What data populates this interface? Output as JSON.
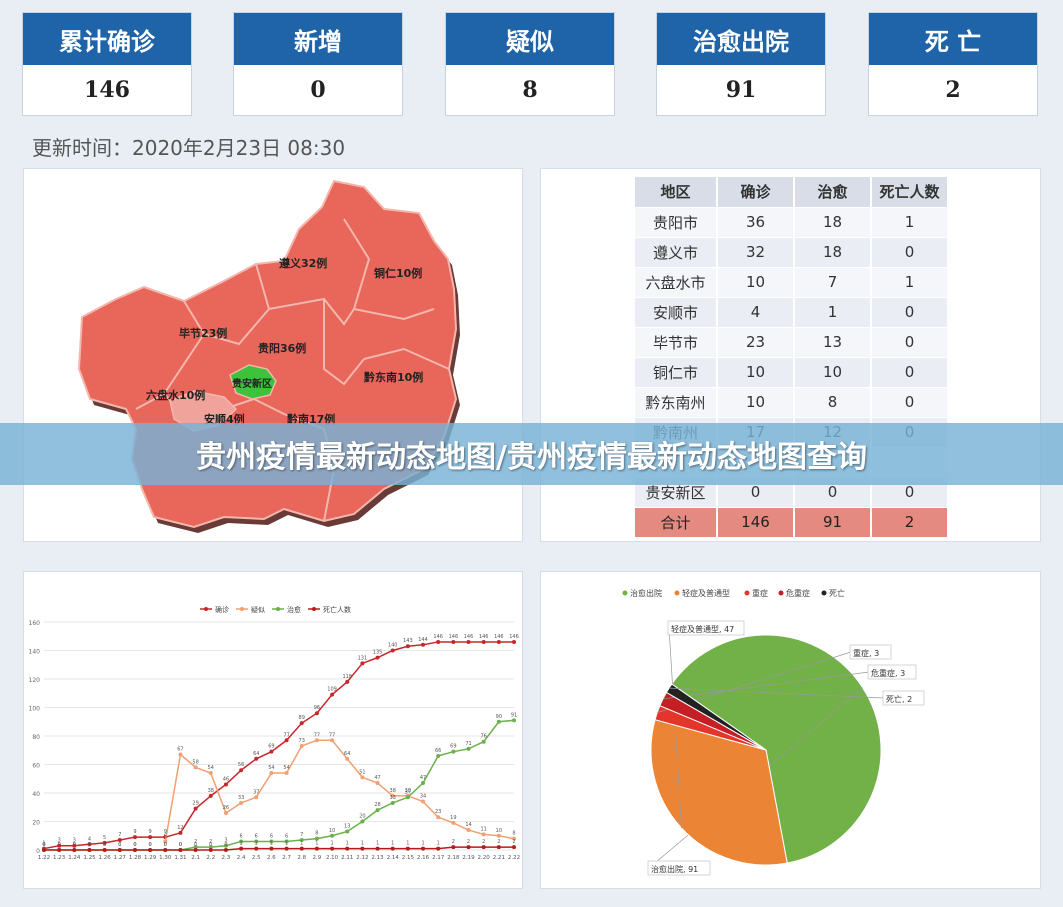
{
  "stats": [
    {
      "label": "累计确诊",
      "value": "146"
    },
    {
      "label": "新增",
      "value": "0"
    },
    {
      "label": "疑似",
      "value": "8"
    },
    {
      "label": "治愈出院",
      "value": "91"
    },
    {
      "label": "死 亡",
      "value": "2"
    }
  ],
  "update_time": "更新时间：2020年2月23日  08:30",
  "banner_title": "贵州疫情最新动态地图/贵州疫情最新动态地图查询",
  "map": {
    "labels": [
      "遵义32例",
      "铜仁10例",
      "毕节23例",
      "贵阳36例",
      "贵安新区",
      "黔东南10例",
      "六盘水10例",
      "安顺4例",
      "黔南17例"
    ],
    "colors": {
      "region": "#e8665a",
      "highlight": "#3ec23b",
      "border": "#f3b7ae"
    }
  },
  "table": {
    "headers": [
      "地区",
      "确诊",
      "治愈",
      "死亡人数"
    ],
    "rows": [
      [
        "贵阳市",
        "36",
        "18",
        "1"
      ],
      [
        "遵义市",
        "32",
        "18",
        "0"
      ],
      [
        "六盘水市",
        "10",
        "7",
        "1"
      ],
      [
        "安顺市",
        "4",
        "1",
        "0"
      ],
      [
        "毕节市",
        "23",
        "13",
        "0"
      ],
      [
        "铜仁市",
        "10",
        "10",
        "0"
      ],
      [
        "黔东南州",
        "10",
        "8",
        "0"
      ],
      [
        "黔南州",
        "17",
        "12",
        "0"
      ],
      [
        "",
        "",
        "",
        ""
      ],
      [
        "贵安新区",
        "0",
        "0",
        "0"
      ]
    ],
    "total": [
      "合计",
      "146",
      "91",
      "2"
    ]
  },
  "chart_data": [
    {
      "type": "line",
      "title": "",
      "x": [
        "1.22",
        "1.23",
        "1.24",
        "1.25",
        "1.26",
        "1.27",
        "1.28",
        "1.29",
        "1.30",
        "1.31",
        "2.1",
        "2.2",
        "2.3",
        "2.4",
        "2.5",
        "2.6",
        "2.7",
        "2.8",
        "2.9",
        "2.10",
        "2.11",
        "2.12",
        "2.13",
        "2.14",
        "2.15",
        "2.16",
        "2.17",
        "2.18",
        "2.19",
        "2.20",
        "2.21",
        "2.22"
      ],
      "ylim": [
        0,
        160
      ],
      "yticks": [
        0,
        20,
        40,
        60,
        80,
        100,
        120,
        140,
        160
      ],
      "legend_position": "top",
      "series": [
        {
          "name": "确诊",
          "color": "#c8262a",
          "values": [
            1,
            3,
            3,
            4,
            5,
            7,
            9,
            9,
            9,
            12,
            29,
            38,
            46,
            56,
            64,
            69,
            77,
            89,
            96,
            109,
            118,
            131,
            135,
            140,
            143,
            144,
            146,
            146,
            146,
            146,
            146,
            146
          ]
        },
        {
          "name": "疑似",
          "color": "#f0a071",
          "values": [
            null,
            null,
            null,
            null,
            null,
            null,
            null,
            null,
            6,
            67,
            58,
            54,
            26,
            33,
            37,
            54,
            54,
            73,
            77,
            77,
            64,
            51,
            47,
            38,
            38,
            34,
            23,
            19,
            14,
            11,
            10,
            8
          ]
        },
        {
          "name": "治愈",
          "color": "#6ab04c",
          "values": [
            0,
            0,
            0,
            0,
            0,
            0,
            0,
            0,
            0,
            0,
            2,
            2,
            3,
            6,
            6,
            6,
            6,
            7,
            8,
            10,
            13,
            20,
            28,
            33,
            37,
            47,
            66,
            69,
            71,
            76,
            90,
            91
          ]
        },
        {
          "name": "死亡人数",
          "color": "#b51b1b",
          "values": [
            0,
            0,
            0,
            0,
            0,
            0,
            0,
            0,
            0,
            0,
            0,
            0,
            0,
            1,
            1,
            1,
            1,
            1,
            1,
            1,
            1,
            1,
            1,
            1,
            1,
            1,
            1,
            2,
            2,
            2,
            2,
            2
          ]
        }
      ]
    },
    {
      "type": "pie",
      "title": "",
      "legend_position": "top",
      "legend": [
        "治愈出院",
        "轻症及普通型",
        "重症",
        "危重症",
        "死亡"
      ],
      "slices": [
        {
          "name": "治愈出院",
          "value": 91,
          "label": "治愈出院, 91",
          "color": "#72b048"
        },
        {
          "name": "轻症及普通型",
          "value": 47,
          "label": "轻症及普通型, 47",
          "color": "#ec8436"
        },
        {
          "name": "重症",
          "value": 3,
          "label": "重症, 3",
          "color": "#e3352b"
        },
        {
          "name": "危重症",
          "value": 3,
          "label": "危重症, 3",
          "color": "#c31f24"
        },
        {
          "name": "死亡",
          "value": 2,
          "label": "死亡, 2",
          "color": "#222222"
        }
      ]
    }
  ]
}
